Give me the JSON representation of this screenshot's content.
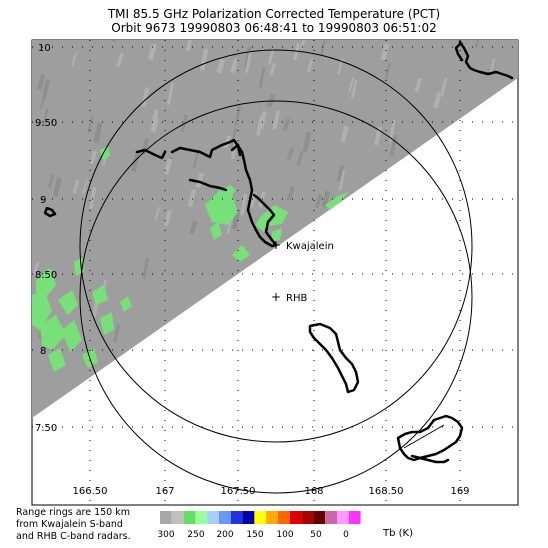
{
  "title": {
    "line1": "TMI 85.5 GHz Polarization Corrected Temperature (PCT)",
    "line2": "Orbit 9673 19990803 06:48:41 to 19990803 06:51:02"
  },
  "map": {
    "lon_ticks": [
      "166.50",
      "167",
      "167.50",
      "168",
      "168.50",
      "169"
    ],
    "lat_ticks": [
      "10",
      "9.50",
      "9",
      "8.50",
      "8",
      "7.50"
    ],
    "stations": [
      {
        "name": "Kwajalein",
        "marker": "+"
      },
      {
        "name": "RHB",
        "marker": "+"
      }
    ],
    "colors": {
      "swath_gray": "#9e9e9e",
      "rain_green": "#78e078",
      "coastline": "#000000",
      "range_ring": "#000000"
    }
  },
  "notes": {
    "line1": "Range rings are 150 km",
    "line2": "from Kwajalein S-band",
    "line3": "and RHB C-band radars."
  },
  "colorbar": {
    "colors": [
      "#a8a8a8",
      "#c0c0c0",
      "#66dd66",
      "#99ff99",
      "#aaccff",
      "#6699ff",
      "#2233dd",
      "#0000aa",
      "#ffff00",
      "#ffaa00",
      "#ff6600",
      "#dd0000",
      "#aa0000",
      "#660000",
      "#cc66aa",
      "#ff99ff",
      "#ff33ff"
    ],
    "labels": [
      "300",
      "250",
      "200",
      "150",
      "100",
      "50",
      "0"
    ],
    "unit": "Tb (K)"
  }
}
